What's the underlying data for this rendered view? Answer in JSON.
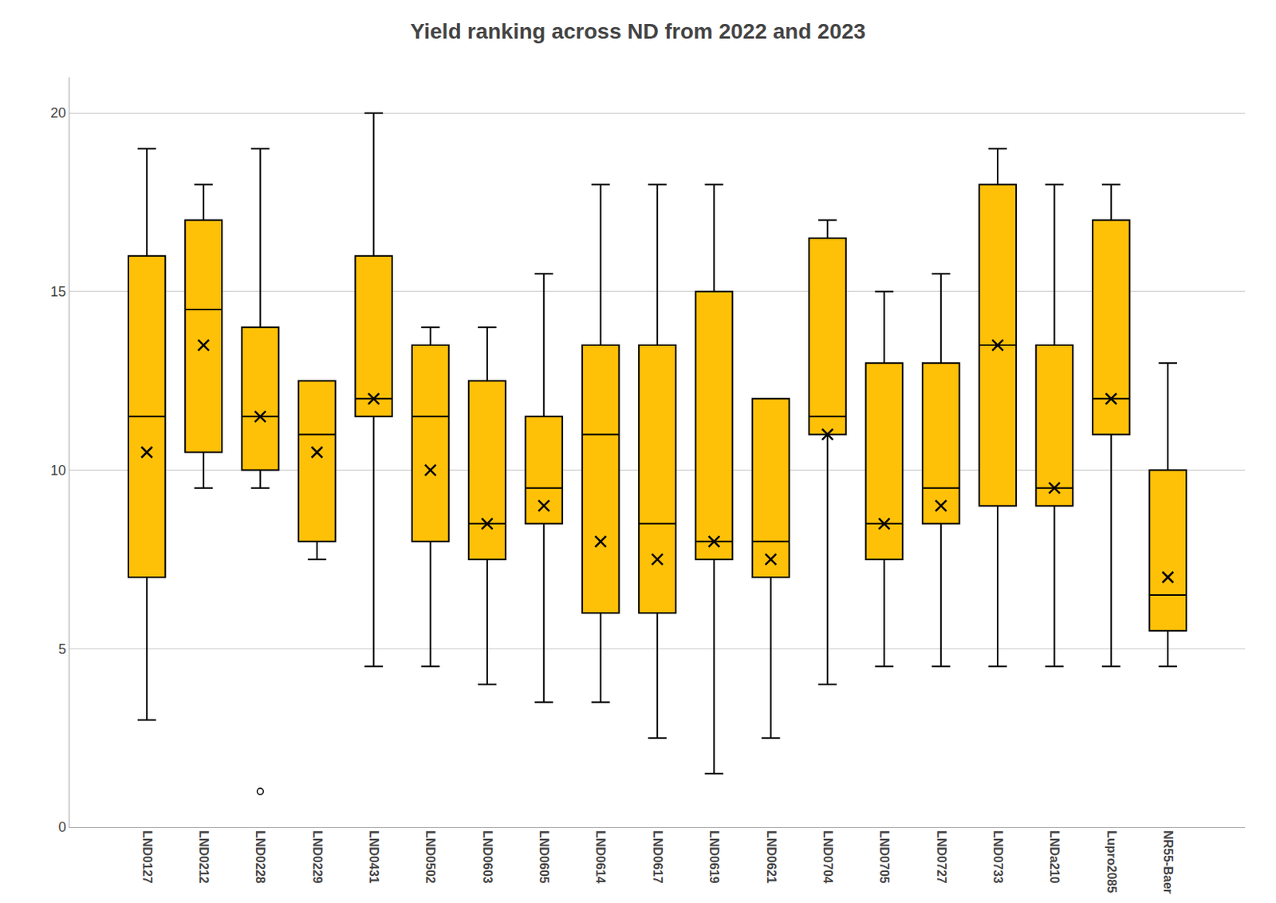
{
  "chart_data": {
    "type": "box",
    "title": "Yield ranking across ND from 2022 and 2023",
    "categories": [
      "LND0127",
      "LND0212",
      "LND0228",
      "LND0229",
      "LND0431",
      "LND0502",
      "LND0603",
      "LND0605",
      "LND0614",
      "LND0617",
      "LND0619",
      "LND0621",
      "LND0704",
      "LND0705",
      "LND0727",
      "LND0733",
      "LNDa210",
      "Lupro2085",
      "NR55-Baer"
    ],
    "whislo": [
      3.0,
      9.5,
      9.5,
      7.5,
      4.5,
      4.5,
      4.0,
      3.5,
      3.5,
      2.5,
      1.5,
      2.5,
      4.0,
      4.5,
      4.5,
      4.5,
      4.5,
      4.5,
      4.5
    ],
    "q1": [
      7.0,
      10.5,
      10.0,
      8.0,
      11.5,
      8.0,
      7.5,
      8.5,
      6.0,
      6.0,
      7.5,
      7.0,
      11.0,
      7.5,
      8.5,
      9.0,
      9.0,
      11.0,
      5.5
    ],
    "median": [
      11.5,
      14.5,
      11.5,
      11.0,
      12.0,
      11.5,
      8.5,
      9.5,
      11.0,
      8.5,
      8.0,
      8.0,
      11.5,
      8.5,
      9.5,
      13.5,
      9.5,
      12.0,
      6.5
    ],
    "q3": [
      16.0,
      17.0,
      14.0,
      12.5,
      16.0,
      13.5,
      12.5,
      11.5,
      13.5,
      13.5,
      15.0,
      12.0,
      16.5,
      13.0,
      13.0,
      18.0,
      13.5,
      17.0,
      10.0
    ],
    "whishi": [
      19.0,
      18.0,
      19.0,
      12.5,
      20.0,
      14.0,
      14.0,
      15.5,
      18.0,
      18.0,
      18.0,
      12.0,
      17.0,
      15.0,
      15.5,
      19.0,
      18.0,
      18.0,
      13.0
    ],
    "mean": [
      10.5,
      13.5,
      11.5,
      10.5,
      12.0,
      10.0,
      8.5,
      9.0,
      8.0,
      7.5,
      8.0,
      7.5,
      11.0,
      8.5,
      9.0,
      13.5,
      9.5,
      12.0,
      7.0
    ],
    "fliers": [
      [],
      [],
      [
        1.0
      ],
      [],
      [],
      [],
      [],
      [],
      [],
      [],
      [],
      [],
      [],
      [],
      [],
      [],
      [],
      [],
      []
    ],
    "color": "#FFC107",
    "ylim": [
      0,
      21
    ],
    "yticks": [
      0,
      5,
      10,
      15,
      20
    ],
    "grid": true
  }
}
